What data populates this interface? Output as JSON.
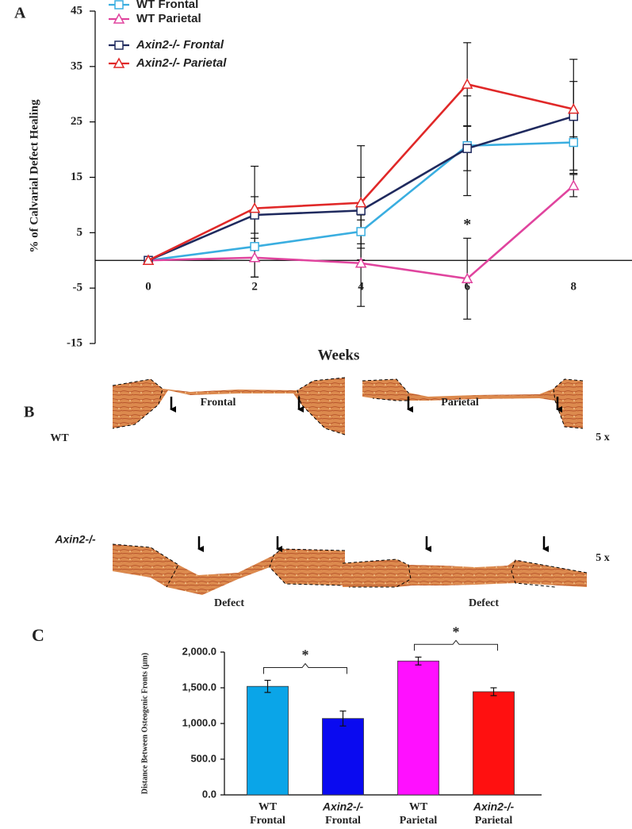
{
  "chart_data": [
    {
      "type": "line",
      "panel_label": "A",
      "y_label": "% of Calvarial Defect Healing",
      "x_label": "Weeks",
      "x": [
        0,
        2,
        4,
        6,
        8
      ],
      "xlim": [
        -1,
        9.1
      ],
      "xticks": [
        0,
        2,
        4,
        6,
        8
      ],
      "ylim": [
        -15,
        45
      ],
      "yticks": [
        -15,
        -5,
        5,
        15,
        25,
        35,
        45
      ],
      "annotations": [
        {
          "text": "*",
          "x": 6
        }
      ],
      "series": [
        {
          "name": "WT Frontal",
          "color": "#3aaee0",
          "marker": "square",
          "values": [
            0,
            2.5,
            5.2,
            20.7,
            21.3
          ],
          "errors": [
            0,
            5.5,
            3,
            9,
            5
          ]
        },
        {
          "name": "WT Parietal",
          "color": "#e0449e",
          "marker": "triangle",
          "values": [
            0,
            0.5,
            -0.5,
            -3.3,
            13.5
          ],
          "errors": [
            0,
            3.5,
            7.8,
            7.3,
            2
          ]
        },
        {
          "name": "Axin2-/-  Frontal",
          "color": "#1f2a5e",
          "marker": "square",
          "values": [
            0,
            8.2,
            9.0,
            20.2,
            26.0
          ],
          "errors": [
            0,
            3.3,
            6,
            4,
            10.3
          ]
        },
        {
          "name": "Axin2-/-  Parietal",
          "color": "#e02828",
          "marker": "triangle",
          "values": [
            0,
            9.4,
            10.4,
            31.8,
            27.3
          ],
          "errors": [
            0,
            7.6,
            10.3,
            7.5,
            5
          ]
        }
      ]
    },
    {
      "type": "bar",
      "panel_label": "C",
      "y_label": "Distance Between Osteogenic Fronts (µm)",
      "categories": [
        [
          "WT",
          "Frontal"
        ],
        [
          "Axin2-/-",
          "Frontal"
        ],
        [
          "WT",
          "Parietal"
        ],
        [
          "Axin2-/-",
          "Parietal"
        ]
      ],
      "values": [
        1520,
        1070,
        1875,
        1445
      ],
      "errors": [
        85,
        105,
        55,
        55
      ],
      "colors": [
        "#0aa5e8",
        "#0a0af0",
        "#ff10ff",
        "#ff1010"
      ],
      "ylim": [
        0,
        2000
      ],
      "yticks": [
        {
          "value": 0,
          "label": "0.0"
        },
        {
          "value": 500,
          "label": "500.0"
        },
        {
          "value": 1000,
          "label": "1,000.0"
        },
        {
          "value": 1500,
          "label": "1,500.0"
        },
        {
          "value": 2000,
          "label": "2,000.0"
        }
      ],
      "annotations": [
        {
          "text": "*",
          "between": [
            0,
            1
          ]
        },
        {
          "text": "*",
          "between": [
            2,
            3
          ]
        }
      ]
    }
  ],
  "figure_b": {
    "panel_label": "B",
    "columns": [
      "Frontal",
      "Parietal"
    ],
    "rows": [
      "WT",
      "Axin2-/-"
    ],
    "magnification": [
      "5 x",
      "5 x"
    ],
    "bottom_labels": [
      "Defect",
      "Defect"
    ]
  }
}
